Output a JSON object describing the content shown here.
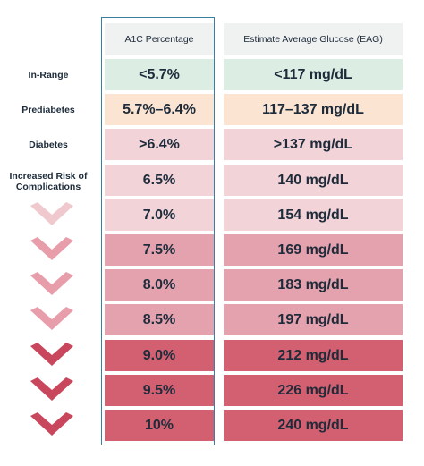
{
  "headers": {
    "a1c": "A1C Percentage",
    "eag": "Estimate Average Glucose (EAG)"
  },
  "rows": [
    {
      "label": "In-Range",
      "a1c": "<5.7%",
      "eag": "<117 mg/dL",
      "color": "#dceee4",
      "chevron": false
    },
    {
      "label": "Prediabetes",
      "a1c": "5.7%–6.4%",
      "eag": "117–137 mg/dL",
      "color": "#fbe4d2",
      "chevron": false
    },
    {
      "label": "Diabetes",
      "a1c": ">6.4%",
      "eag": ">137 mg/dL",
      "color": "#f1d3d8",
      "chevron": false
    },
    {
      "label": "Increased Risk of Complications",
      "a1c": "6.5%",
      "eag": "140 mg/dL",
      "color": "#f1d3d8",
      "chevron": false
    },
    {
      "label": "",
      "a1c": "7.0%",
      "eag": "154 mg/dL",
      "color": "#f1d3d8",
      "chevron": true,
      "chevron_color": "#f0c9cf"
    },
    {
      "label": "",
      "a1c": "7.5%",
      "eag": "169 mg/dL",
      "color": "#e3a2ad",
      "chevron": true,
      "chevron_color": "#e89dab"
    },
    {
      "label": "",
      "a1c": "8.0%",
      "eag": "183 mg/dL",
      "color": "#e3a2ad",
      "chevron": true,
      "chevron_color": "#e89dab"
    },
    {
      "label": "",
      "a1c": "8.5%",
      "eag": "197 mg/dL",
      "color": "#e3a2ad",
      "chevron": true,
      "chevron_color": "#e89dab"
    },
    {
      "label": "",
      "a1c": "9.0%",
      "eag": "212 mg/dL",
      "color": "#d26070",
      "chevron": true,
      "chevron_color": "#c9475d"
    },
    {
      "label": "",
      "a1c": "9.5%",
      "eag": "226 mg/dL",
      "color": "#d26070",
      "chevron": true,
      "chevron_color": "#c9475d"
    },
    {
      "label": "",
      "a1c": "10%",
      "eag": "240 mg/dL",
      "color": "#d26070",
      "chevron": true,
      "chevron_color": "#c9475d"
    }
  ]
}
